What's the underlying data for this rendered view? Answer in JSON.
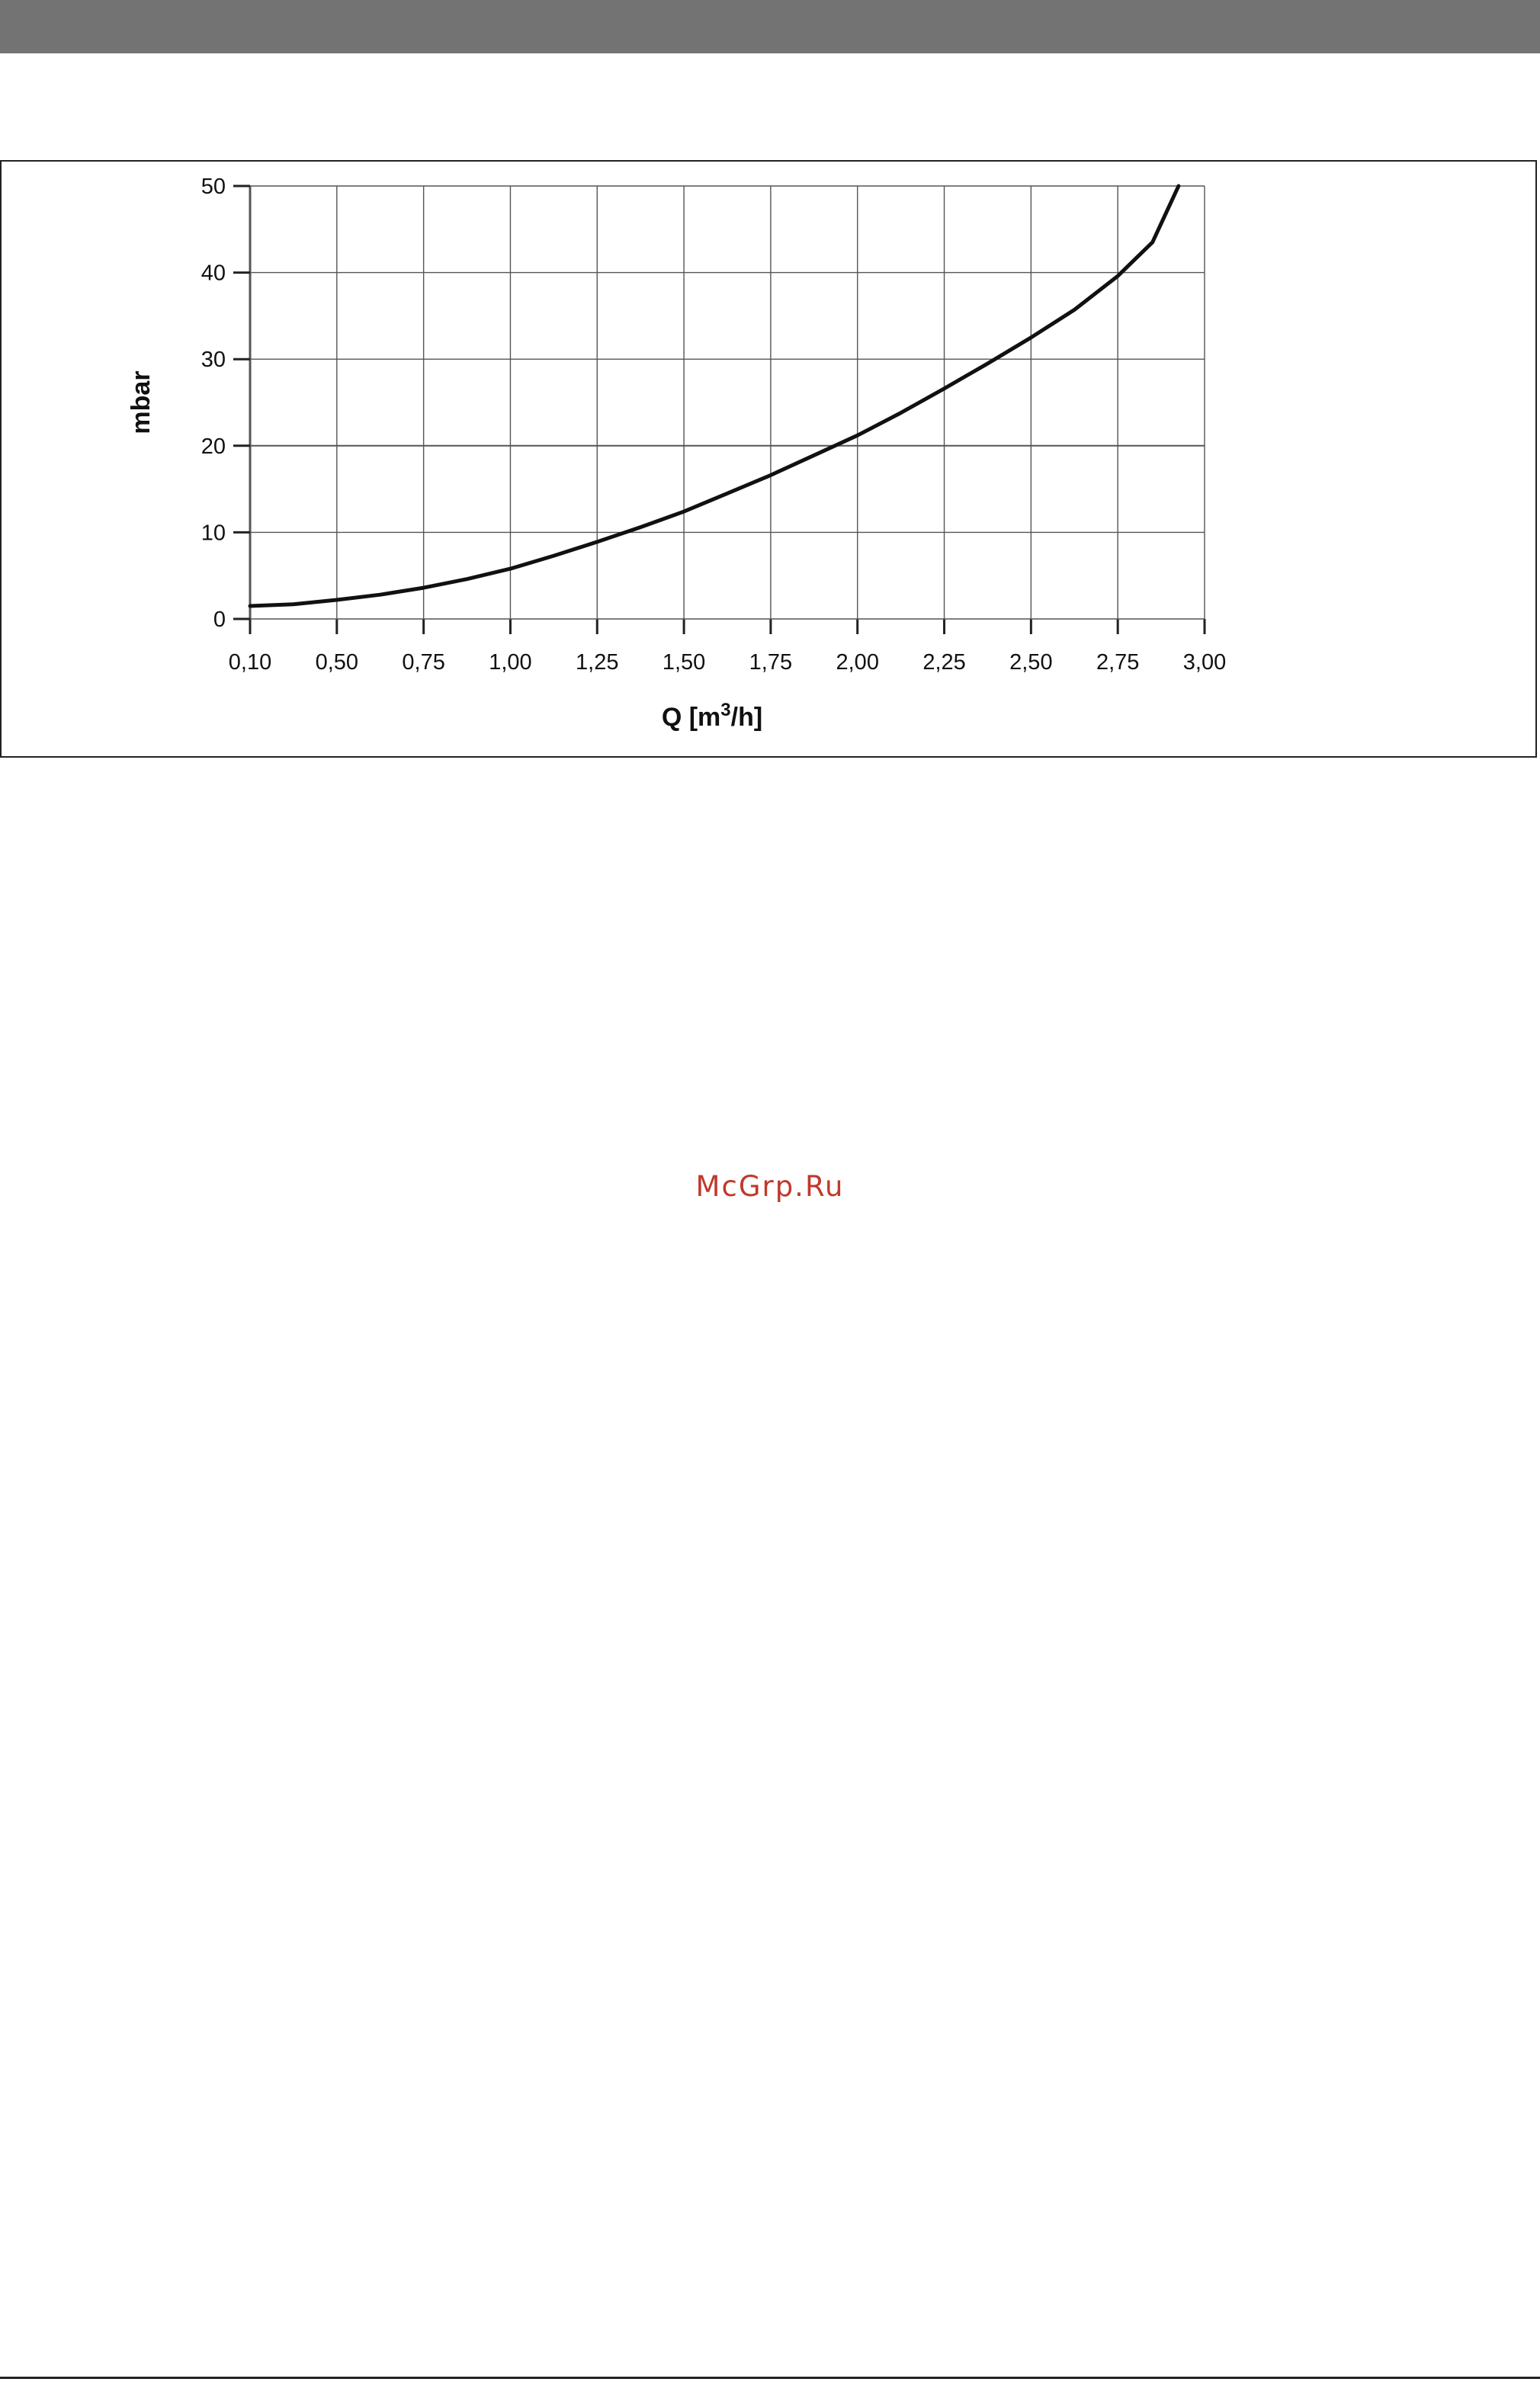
{
  "watermark": "McGrp.Ru",
  "chart_data": {
    "type": "line",
    "title": "",
    "xlabel": "Q [m3/h]",
    "xlabel_base": "Q [m",
    "xlabel_sup": "3",
    "xlabel_tail": "/h]",
    "ylabel": "mbar",
    "x_ticks": [
      "0,10",
      "0,50",
      "0,75",
      "1,00",
      "1,25",
      "1,50",
      "1,75",
      "2,00",
      "2,25",
      "2,50",
      "2,75",
      "3,00"
    ],
    "y_ticks": [
      "0",
      "10",
      "20",
      "30",
      "40",
      "50"
    ],
    "ylim": [
      0,
      50
    ],
    "grid": true,
    "legend": "none",
    "line_color": "#111111",
    "series": [
      {
        "x_index": [
          0,
          0.5,
          1,
          1.5,
          2,
          2.5,
          3,
          3.5,
          4,
          4.5,
          5,
          5.5,
          6,
          6.5,
          7,
          7.5,
          8,
          8.5,
          9,
          9.5,
          10,
          10.4,
          10.7
        ],
        "values": [
          1.5,
          1.7,
          2.2,
          2.8,
          3.6,
          4.6,
          5.8,
          7.3,
          8.9,
          10.6,
          12.4,
          14.5,
          16.6,
          18.9,
          21.2,
          23.8,
          26.6,
          29.5,
          32.5,
          35.7,
          39.6,
          43.5,
          50.0
        ]
      }
    ]
  }
}
